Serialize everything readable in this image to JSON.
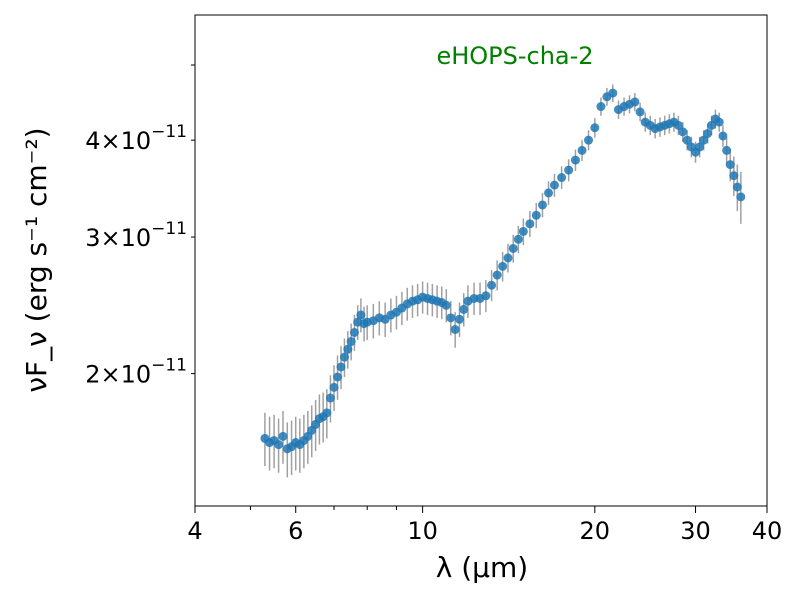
{
  "chart_data": {
    "type": "scatter",
    "annotation": "eHOPS-cha-2",
    "annotation_color": "#008000",
    "marker_color": "#1f77b4",
    "errorbar_color": "#a0a0a0",
    "xlabel": "λ (μm)",
    "ylabel": "νF_ν (erg s⁻¹ cm⁻²)",
    "xscale": "log",
    "yscale": "log",
    "xlim": [
      4,
      40
    ],
    "ylim": [
      1.35e-11,
      5.8e-11
    ],
    "x_ticks": [
      {
        "value": 4,
        "label": "4"
      },
      {
        "value": 6,
        "label": "6"
      },
      {
        "value": 10,
        "label": "10"
      },
      {
        "value": 20,
        "label": "20"
      },
      {
        "value": 30,
        "label": "30"
      },
      {
        "value": 40,
        "label": "40"
      }
    ],
    "y_ticks": [
      {
        "value": 2e-11,
        "mant": "2",
        "exp": "−11"
      },
      {
        "value": 3e-11,
        "mant": "3",
        "exp": "−11"
      },
      {
        "value": 4e-11,
        "mant": "4",
        "exp": "−11"
      }
    ],
    "grid": false,
    "series": [
      {
        "x": [
          5.3,
          5.4,
          5.5,
          5.6,
          5.7,
          5.8,
          5.9,
          6.0,
          6.1,
          6.2,
          6.3,
          6.4,
          6.5,
          6.6,
          6.7,
          6.8,
          6.9,
          7.0,
          7.1,
          7.2,
          7.3,
          7.4,
          7.5,
          7.6,
          7.7,
          7.8,
          7.9,
          8.0,
          8.2,
          8.4,
          8.6,
          8.8,
          9.0,
          9.2,
          9.4,
          9.6,
          9.8,
          10.0,
          10.2,
          10.4,
          10.6,
          10.8,
          11.0,
          11.2,
          11.4,
          11.6,
          11.8,
          12.0,
          12.3,
          12.6,
          12.9,
          13.2,
          13.5,
          13.8,
          14.1,
          14.4,
          14.7,
          15.0,
          15.4,
          15.8,
          16.2,
          16.6,
          17.0,
          17.5,
          18.0,
          18.5,
          19.0,
          19.5,
          20.0,
          20.5,
          21.0,
          21.5,
          22.0,
          22.5,
          23.0,
          23.5,
          24.0,
          24.5,
          25.0,
          25.5,
          26.0,
          26.5,
          27.0,
          27.5,
          28.0,
          28.5,
          29.0,
          29.5,
          30.0,
          30.5,
          31.0,
          31.5,
          32.0,
          32.5,
          33.0,
          33.5,
          34.0,
          34.5,
          35.0,
          35.5,
          36.0
        ],
        "y": [
          1.65e-11,
          1.63e-11,
          1.64e-11,
          1.62e-11,
          1.66e-11,
          1.6e-11,
          1.61e-11,
          1.63e-11,
          1.62e-11,
          1.64e-11,
          1.66e-11,
          1.69e-11,
          1.72e-11,
          1.75e-11,
          1.76e-11,
          1.78e-11,
          1.86e-11,
          1.92e-11,
          1.98e-11,
          2.04e-11,
          2.1e-11,
          2.15e-11,
          2.2e-11,
          2.26e-11,
          2.33e-11,
          2.38e-11,
          2.32e-11,
          2.33e-11,
          2.34e-11,
          2.36e-11,
          2.35e-11,
          2.38e-11,
          2.4e-11,
          2.43e-11,
          2.46e-11,
          2.48e-11,
          2.49e-11,
          2.51e-11,
          2.5e-11,
          2.49e-11,
          2.48e-11,
          2.47e-11,
          2.45e-11,
          2.36e-11,
          2.28e-11,
          2.35e-11,
          2.42e-11,
          2.48e-11,
          2.5e-11,
          2.5e-11,
          2.52e-11,
          2.6e-11,
          2.68e-11,
          2.75e-11,
          2.82e-11,
          2.9e-11,
          2.98e-11,
          3.05e-11,
          3.12e-11,
          3.2e-11,
          3.3e-11,
          3.42e-11,
          3.5e-11,
          3.58e-11,
          3.66e-11,
          3.77e-11,
          3.88e-11,
          4e-11,
          4.15e-11,
          4.42e-11,
          4.55e-11,
          4.6e-11,
          4.38e-11,
          4.42e-11,
          4.45e-11,
          4.48e-11,
          4.35e-11,
          4.22e-11,
          4.18e-11,
          4.14e-11,
          4.16e-11,
          4.18e-11,
          4.2e-11,
          4.22e-11,
          4.18e-11,
          4.1e-11,
          4e-11,
          3.92e-11,
          3.86e-11,
          3.92e-11,
          4e-11,
          4.08e-11,
          4.18e-11,
          4.26e-11,
          4.22e-11,
          4.05e-11,
          3.88e-11,
          3.72e-11,
          3.6e-11,
          3.48e-11,
          3.38e-11
        ],
        "yerr": [
          1.3e-12,
          1.3e-12,
          1.3e-12,
          1.3e-12,
          1.3e-12,
          1.3e-12,
          1.3e-12,
          1.3e-12,
          1.3e-12,
          1.3e-12,
          1.3e-12,
          1.3e-12,
          1.3e-12,
          1.3e-12,
          1.3e-12,
          1.3e-12,
          1.3e-12,
          1.3e-12,
          1.3e-12,
          1.3e-12,
          1.2e-12,
          1.2e-12,
          1.2e-12,
          1.2e-12,
          1.2e-12,
          1.2e-12,
          1.2e-12,
          1.2e-12,
          1.2e-12,
          1.2e-12,
          1.2e-12,
          1.2e-12,
          1.2e-12,
          1.2e-12,
          1.2e-12,
          1.2e-12,
          1.2e-12,
          1.2e-12,
          1.2e-12,
          1.2e-12,
          1.2e-12,
          1.2e-12,
          1.2e-12,
          1.2e-12,
          1.2e-12,
          1.2e-12,
          1.2e-12,
          1.2e-12,
          1.2e-12,
          1.2e-12,
          1.2e-12,
          1.2e-12,
          1.2e-12,
          1.2e-12,
          1.2e-12,
          1.2e-12,
          1.2e-12,
          1.2e-12,
          1.2e-12,
          1.2e-12,
          1.2e-12,
          1.2e-12,
          1.2e-12,
          1.2e-12,
          1.2e-12,
          1.2e-12,
          1.2e-12,
          1.2e-12,
          1.2e-12,
          1.2e-12,
          1.2e-12,
          1.2e-12,
          1.2e-12,
          1.2e-12,
          1.2e-12,
          1.2e-12,
          1.2e-12,
          1.2e-12,
          1.2e-12,
          1.2e-12,
          1.2e-12,
          1.2e-12,
          1.2e-12,
          1.2e-12,
          1.2e-12,
          1.2e-12,
          1.2e-12,
          1.2e-12,
          1.2e-12,
          1.2e-12,
          1.2e-12,
          1.2e-12,
          1.2e-12,
          1.2e-12,
          1.2e-12,
          1.3e-12,
          1.5e-12,
          1.8e-12,
          2.1e-12,
          2.4e-12,
          2.6e-12
        ]
      }
    ]
  }
}
